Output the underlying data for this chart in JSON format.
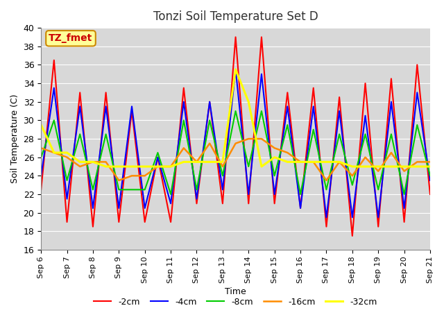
{
  "title": "Tonzi Soil Temperature Set D",
  "xlabel": "Time",
  "ylabel": "Soil Temperature (C)",
  "annotation": "TZ_fmet",
  "ylim": [
    16,
    40
  ],
  "yticks": [
    16,
    18,
    20,
    22,
    24,
    26,
    28,
    30,
    32,
    34,
    36,
    38,
    40
  ],
  "xtick_labels": [
    "Sep 6",
    "Sep 7",
    "Sep 8",
    "Sep 9",
    "Sep 10",
    "Sep 11",
    "Sep 12",
    "Sep 13",
    "Sep 14",
    "Sep 15",
    "Sep 16",
    "Sep 17",
    "Sep 18",
    "Sep 19",
    "Sep 20",
    "Sep 21"
  ],
  "series": {
    "-2cm": {
      "color": "#ff0000",
      "linewidth": 1.5,
      "values": [
        22.5,
        36.5,
        19.0,
        33.0,
        18.5,
        33.0,
        19.0,
        31.0,
        19.0,
        26.0,
        19.0,
        33.5,
        21.0,
        32.0,
        21.0,
        39.0,
        21.0,
        39.0,
        21.0,
        33.0,
        20.5,
        33.5,
        18.5,
        32.5,
        17.5,
        34.0,
        18.5,
        34.5,
        19.0,
        36.0,
        22.0
      ]
    },
    "-4cm": {
      "color": "#0000ff",
      "linewidth": 1.5,
      "values": [
        24.0,
        33.5,
        21.5,
        31.5,
        20.5,
        31.5,
        20.5,
        31.5,
        20.5,
        26.0,
        21.0,
        32.0,
        21.5,
        32.0,
        22.5,
        35.5,
        22.0,
        35.0,
        22.0,
        31.5,
        20.5,
        31.5,
        19.5,
        31.0,
        19.5,
        30.5,
        19.5,
        32.0,
        20.5,
        33.0,
        23.5
      ]
    },
    "-8cm": {
      "color": "#00cc00",
      "linewidth": 1.5,
      "values": [
        26.0,
        30.0,
        23.5,
        28.5,
        22.5,
        28.5,
        22.5,
        22.5,
        22.5,
        26.5,
        22.0,
        30.0,
        22.5,
        30.0,
        24.0,
        31.0,
        25.0,
        31.0,
        24.0,
        29.5,
        22.0,
        29.0,
        22.5,
        28.5,
        23.0,
        28.5,
        22.5,
        28.5,
        22.0,
        29.5,
        24.0
      ]
    },
    "-16cm": {
      "color": "#ff8c00",
      "linewidth": 1.8,
      "values": [
        27.0,
        26.5,
        26.0,
        25.0,
        25.5,
        25.5,
        23.5,
        24.0,
        24.0,
        25.0,
        25.0,
        27.0,
        25.5,
        27.5,
        25.0,
        27.5,
        28.0,
        28.0,
        27.0,
        26.5,
        25.5,
        25.5,
        23.5,
        25.5,
        24.0,
        26.0,
        24.5,
        26.5,
        24.5,
        25.5,
        25.5
      ]
    },
    "-32cm": {
      "color": "#ffff00",
      "linewidth": 2.2,
      "values": [
        29.5,
        26.5,
        26.5,
        25.5,
        25.5,
        25.0,
        25.0,
        25.0,
        25.0,
        25.0,
        25.0,
        25.5,
        25.5,
        25.5,
        25.5,
        35.5,
        32.0,
        25.0,
        26.0,
        25.5,
        25.5,
        25.5,
        25.5,
        25.5,
        25.0,
        25.0,
        25.0,
        25.0,
        25.0,
        25.0,
        25.0
      ]
    }
  },
  "bg_color": "#d8d8d8",
  "grid_color": "#ffffff",
  "fig_bg": "#ffffff",
  "annotation_bg": "#ffff99",
  "annotation_border": "#cc8800",
  "annotation_text_color": "#cc0000",
  "legend_items": [
    "-2cm",
    "-4cm",
    "-8cm",
    "-16cm",
    "-32cm"
  ]
}
